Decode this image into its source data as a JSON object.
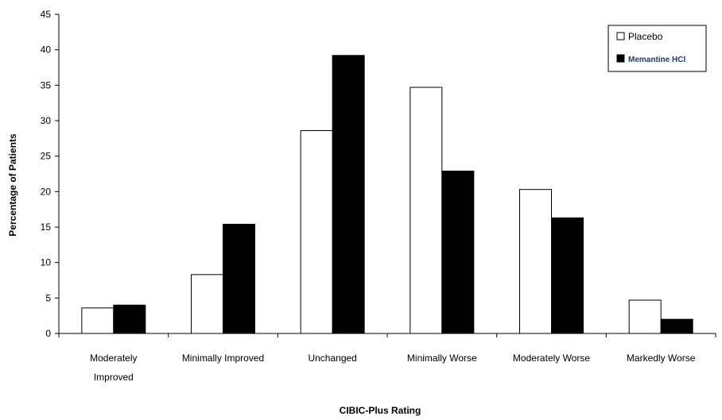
{
  "chart_data": {
    "type": "bar",
    "title": "",
    "xlabel": "CIBIC-Plus Rating",
    "ylabel": "Percentage of Patients",
    "ylim": [
      0,
      45
    ],
    "yticks": [
      0,
      5,
      10,
      15,
      20,
      25,
      30,
      35,
      40,
      45
    ],
    "categories": [
      [
        "Moderately",
        "Improved"
      ],
      [
        "Minimally Improved"
      ],
      [
        "Unchanged"
      ],
      [
        "Minimally Worse"
      ],
      [
        "Moderately Worse"
      ],
      [
        "Markedly Worse"
      ]
    ],
    "series": [
      {
        "name": "Placebo",
        "color": "#ffffff",
        "values": [
          3.6,
          8.3,
          28.6,
          34.7,
          20.3,
          4.7
        ]
      },
      {
        "name": "Memantine HCl",
        "color": "#000000",
        "values": [
          4.0,
          15.4,
          39.2,
          22.9,
          16.3,
          2.0
        ]
      }
    ],
    "legend_position": "top-right",
    "grid": false
  }
}
